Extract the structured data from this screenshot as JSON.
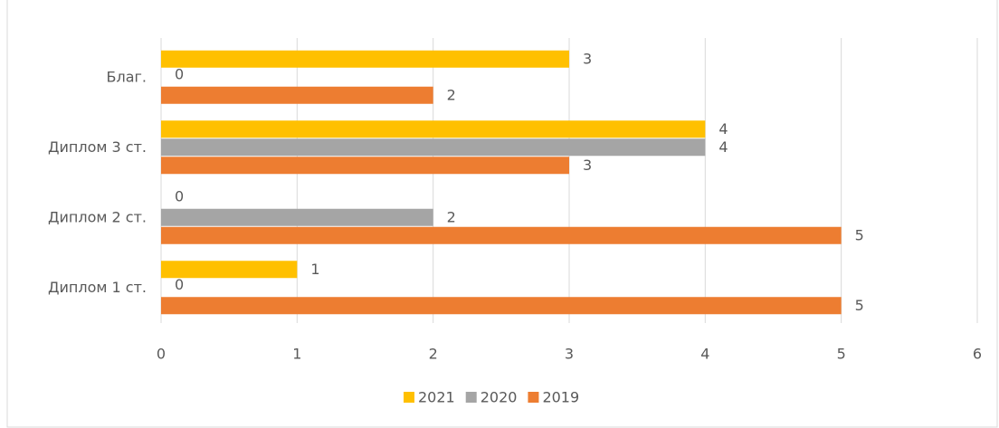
{
  "chart_data": {
    "type": "bar",
    "orientation": "horizontal",
    "categories": [
      "Диплом 1 ст.",
      "Диплом 2 ст.",
      "Диплом 3 ст.",
      "Благ."
    ],
    "series": [
      {
        "name": "2021",
        "color": "#ffc000",
        "values": [
          1,
          0,
          4,
          3
        ]
      },
      {
        "name": "2020",
        "color": "#a5a5a5",
        "values": [
          0,
          2,
          4,
          0
        ]
      },
      {
        "name": "2019",
        "color": "#ed7d31",
        "values": [
          5,
          5,
          3,
          2
        ]
      }
    ],
    "xlim": [
      0,
      6
    ],
    "xticks": [
      0,
      1,
      2,
      3,
      4,
      5,
      6
    ],
    "grid": true,
    "legend": "bottom"
  }
}
